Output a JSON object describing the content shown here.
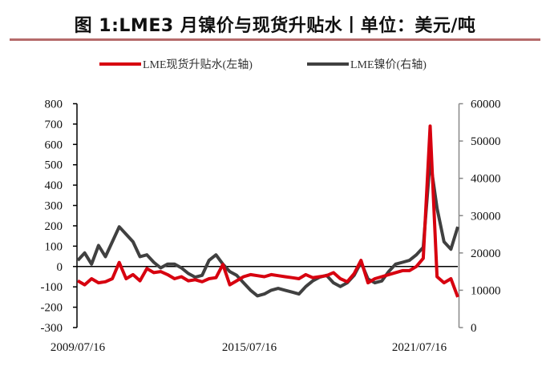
{
  "figure": {
    "title": "图 1:LME3 月镍价与现货升贴水丨单位：美元/吨"
  },
  "legend": [
    {
      "label": "LME现货升贴水(左轴)",
      "color": "#d7000f"
    },
    {
      "label": "LME镍价(右轴)",
      "color": "#404040"
    }
  ],
  "chart_data": {
    "type": "line",
    "title": "LME3月镍价与现货升贴水",
    "unit": "美元/吨",
    "xlabel": "",
    "x_tick_labels": [
      "2009/07/16",
      "2015/07/16",
      "2021/07/16"
    ],
    "x_range": [
      "2009/07/16",
      "2023/01"
    ],
    "left_axis": {
      "label": "LME现货升贴水",
      "ylim": [
        -300,
        800
      ],
      "ticks": [
        800,
        700,
        600,
        500,
        400,
        300,
        200,
        100,
        0,
        -100,
        -200,
        -300
      ]
    },
    "right_axis": {
      "label": "LME镍价",
      "ylim": [
        0,
        60000
      ],
      "ticks": [
        60000,
        50000,
        40000,
        30000,
        20000,
        10000,
        0
      ]
    },
    "grid": false,
    "legend_position": "top",
    "x": [
      "2009-07",
      "2009-10",
      "2010-01",
      "2010-04",
      "2010-07",
      "2010-10",
      "2011-01",
      "2011-04",
      "2011-07",
      "2011-10",
      "2012-01",
      "2012-04",
      "2012-07",
      "2012-10",
      "2013-01",
      "2013-04",
      "2013-07",
      "2013-10",
      "2014-01",
      "2014-04",
      "2014-07",
      "2014-10",
      "2015-01",
      "2015-04",
      "2015-07",
      "2015-10",
      "2016-01",
      "2016-04",
      "2016-07",
      "2016-10",
      "2017-01",
      "2017-04",
      "2017-07",
      "2017-10",
      "2018-01",
      "2018-04",
      "2018-07",
      "2018-10",
      "2019-01",
      "2019-04",
      "2019-07",
      "2019-10",
      "2020-01",
      "2020-04",
      "2020-07",
      "2020-10",
      "2021-01",
      "2021-04",
      "2021-07",
      "2021-10",
      "2022-01",
      "2022-03",
      "2022-04",
      "2022-07",
      "2022-10",
      "2023-01"
    ],
    "series": [
      {
        "name": "LME现货升贴水(左轴)",
        "axis": "left",
        "color": "#d7000f",
        "values": [
          -70,
          -90,
          -60,
          -80,
          -75,
          -60,
          20,
          -60,
          -40,
          -70,
          -10,
          -30,
          -25,
          -40,
          -60,
          -50,
          -70,
          -65,
          -75,
          -60,
          -55,
          10,
          -90,
          -70,
          -50,
          -40,
          -45,
          -50,
          -40,
          -45,
          -50,
          -55,
          -60,
          -40,
          -55,
          -50,
          -45,
          -30,
          -60,
          -75,
          -35,
          30,
          -80,
          -60,
          -50,
          -40,
          -30,
          -20,
          -20,
          0,
          40,
          690,
          -50,
          -80,
          -60,
          -150
        ]
      },
      {
        "name": "LME镍价(右轴)",
        "axis": "right",
        "color": "#404040",
        "values": [
          18000,
          20000,
          17000,
          22000,
          19000,
          23000,
          27000,
          25000,
          23000,
          19000,
          19500,
          17500,
          16000,
          17000,
          17000,
          16000,
          14500,
          13500,
          14000,
          18000,
          19500,
          17000,
          15000,
          14000,
          12000,
          10000,
          8500,
          9000,
          10000,
          10500,
          10000,
          9500,
          9000,
          11000,
          12500,
          13500,
          14000,
          12000,
          11000,
          12000,
          14000,
          17500,
          13000,
          12000,
          12500,
          15000,
          17000,
          17500,
          18000,
          19500,
          21500,
          45000,
          32000,
          23000,
          21000,
          27000
        ]
      }
    ]
  },
  "plot": {
    "zero_line_color": "#000000"
  }
}
